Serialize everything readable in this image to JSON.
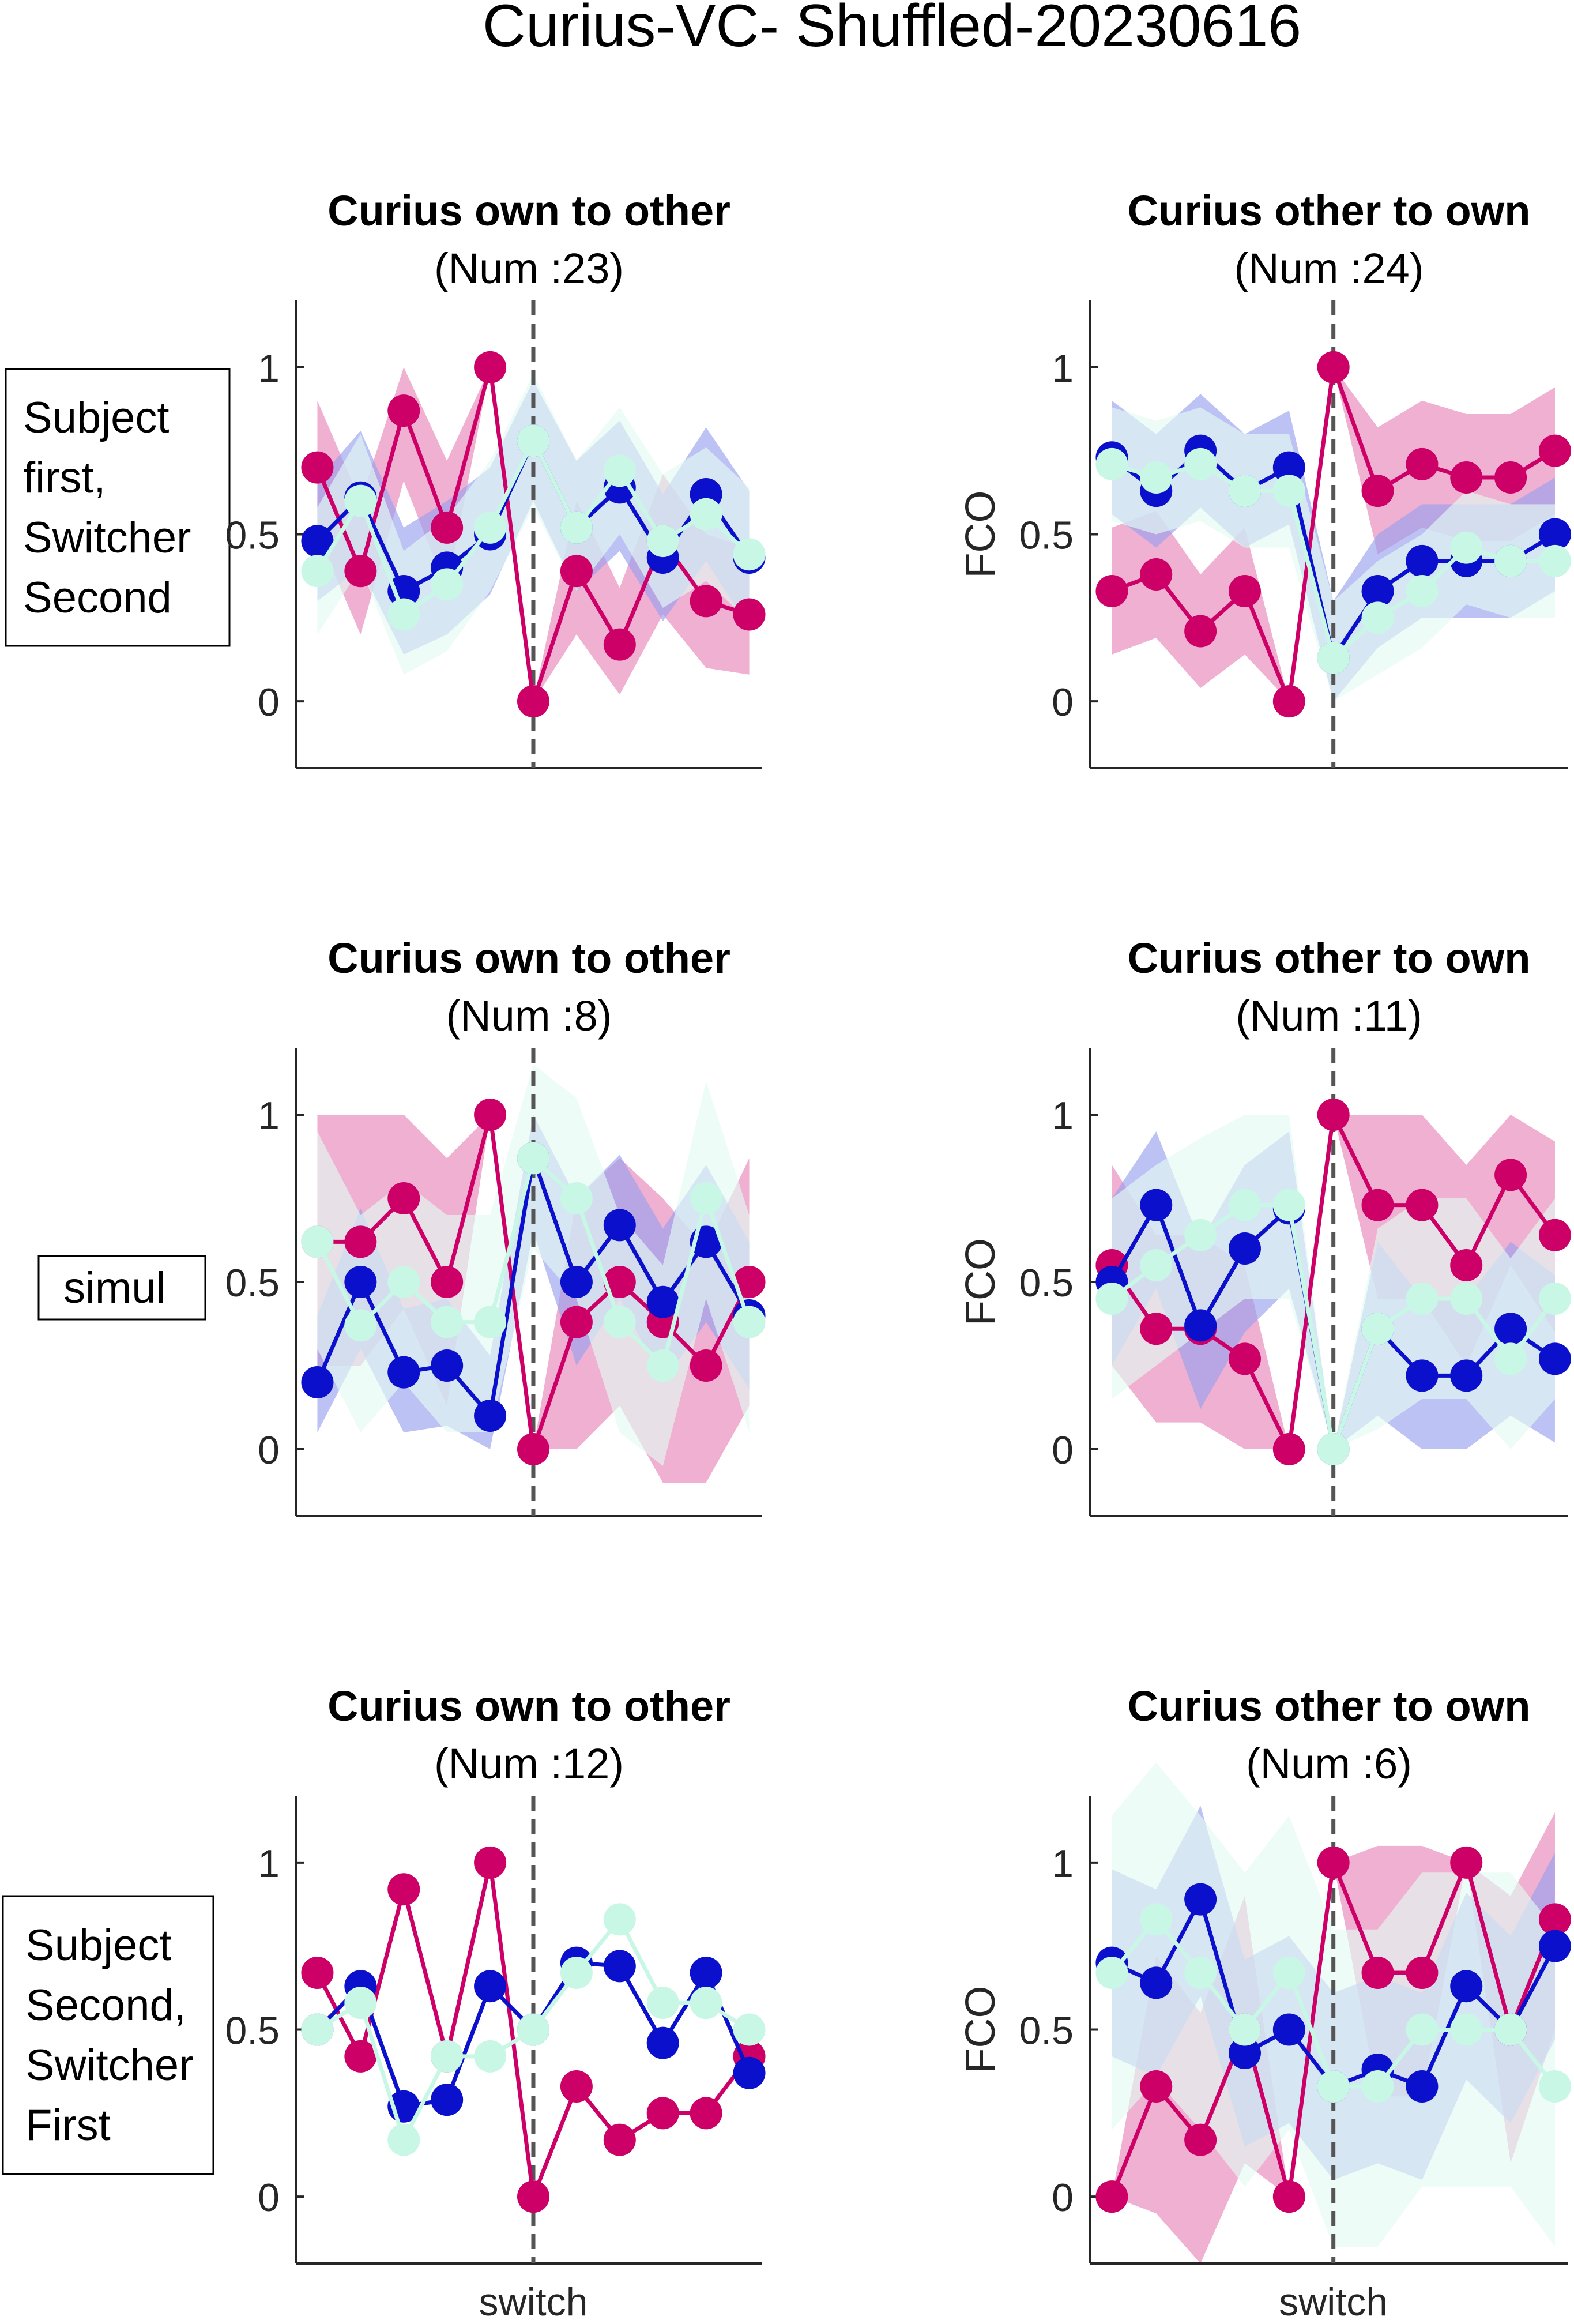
{
  "figure": {
    "title": "Curius-VC- Shuffled-20230616"
  },
  "row_labels": [
    {
      "lines": [
        "Subject",
        "first,",
        "Switcher",
        "Second"
      ]
    },
    {
      "lines": [
        "simul"
      ]
    },
    {
      "lines": [
        "Subject",
        "Second,",
        "Switcher",
        "First"
      ]
    }
  ],
  "colors": {
    "magenta": "#cc0066",
    "blue": "#0a10cc",
    "mint": "#c8f7e6",
    "band_magenta": "#e886b8",
    "band_blue": "#9aa2ee",
    "band_mint": "#e4fbf2",
    "axis": "#262626",
    "switch_line": "#555555"
  },
  "chart_data": [
    {
      "type": "line",
      "title": "Curius own to other",
      "subtitle": "(Num :23)",
      "xlabel": "",
      "ylabel": "",
      "ylim": [
        -0.2,
        1.2
      ],
      "yticks": [
        0,
        0.5,
        1
      ],
      "yticklabels": [
        "0",
        "0.5",
        "1"
      ],
      "x": [
        -5,
        -4,
        -3,
        -2,
        -1,
        0,
        1,
        2,
        3,
        4,
        5
      ],
      "switch_x": 0,
      "series": [
        {
          "color": "magenta",
          "values": [
            0.7,
            0.39,
            0.87,
            0.52,
            1.0,
            0.0,
            0.39,
            0.17,
            0.48,
            0.3,
            0.26
          ],
          "band": {
            "lower": [
              0.5,
              0.2,
              0.66,
              0.33,
              1.0,
              0.0,
              0.2,
              0.02,
              0.26,
              0.1,
              0.08
            ],
            "upper": [
              0.9,
              0.6,
              1.0,
              0.72,
              1.0,
              0.0,
              0.6,
              0.34,
              0.68,
              0.5,
              0.46
            ]
          }
        },
        {
          "color": "blue",
          "values": [
            0.48,
            0.61,
            0.33,
            0.4,
            0.5,
            0.78,
            0.52,
            0.64,
            0.43,
            0.62,
            0.43
          ],
          "band": {
            "lower": [
              0.3,
              0.4,
              0.14,
              0.2,
              0.32,
              0.6,
              0.33,
              0.45,
              0.24,
              0.42,
              0.22
            ],
            "upper": [
              0.66,
              0.81,
              0.52,
              0.6,
              0.7,
              0.96,
              0.72,
              0.84,
              0.62,
              0.82,
              0.63
            ]
          }
        },
        {
          "color": "mint",
          "values": [
            0.39,
            0.6,
            0.26,
            0.35,
            0.52,
            0.78,
            0.52,
            0.69,
            0.48,
            0.56,
            0.44
          ],
          "band": {
            "lower": [
              0.2,
              0.4,
              0.08,
              0.15,
              0.33,
              0.58,
              0.33,
              0.5,
              0.28,
              0.36,
              0.24
            ],
            "upper": [
              0.58,
              0.8,
              0.45,
              0.55,
              0.72,
              0.98,
              0.72,
              0.88,
              0.68,
              0.76,
              0.64
            ]
          }
        }
      ]
    },
    {
      "type": "line",
      "title": "Curius other to own",
      "subtitle": "(Num :24)",
      "xlabel": "",
      "ylabel": "FCO",
      "ylim": [
        -0.2,
        1.2
      ],
      "yticks": [
        0,
        0.5,
        1
      ],
      "yticklabels": [
        "0",
        "0.5",
        "1"
      ],
      "x": [
        -5,
        -4,
        -3,
        -2,
        -1,
        0,
        1,
        2,
        3,
        4,
        5
      ],
      "switch_x": 0,
      "series": [
        {
          "color": "magenta",
          "values": [
            0.33,
            0.38,
            0.21,
            0.33,
            0.0,
            1.0,
            0.63,
            0.71,
            0.67,
            0.67,
            0.75
          ],
          "band": {
            "lower": [
              0.14,
              0.19,
              0.04,
              0.14,
              0.0,
              1.0,
              0.44,
              0.52,
              0.48,
              0.48,
              0.56
            ],
            "upper": [
              0.52,
              0.57,
              0.38,
              0.52,
              0.0,
              1.0,
              0.82,
              0.9,
              0.86,
              0.86,
              0.94
            ]
          }
        },
        {
          "color": "blue",
          "values": [
            0.73,
            0.63,
            0.75,
            0.63,
            0.7,
            0.13,
            0.33,
            0.42,
            0.42,
            0.42,
            0.5
          ],
          "band": {
            "lower": [
              0.56,
              0.46,
              0.58,
              0.46,
              0.53,
              0.0,
              0.16,
              0.25,
              0.25,
              0.25,
              0.33
            ],
            "upper": [
              0.9,
              0.8,
              0.92,
              0.8,
              0.87,
              0.3,
              0.5,
              0.59,
              0.59,
              0.59,
              0.67
            ]
          }
        },
        {
          "color": "mint",
          "values": [
            0.71,
            0.67,
            0.71,
            0.63,
            0.63,
            0.13,
            0.25,
            0.33,
            0.46,
            0.42,
            0.42
          ],
          "band": {
            "lower": [
              0.54,
              0.5,
              0.54,
              0.46,
              0.46,
              0.0,
              0.08,
              0.16,
              0.29,
              0.25,
              0.25
            ],
            "upper": [
              0.88,
              0.84,
              0.88,
              0.8,
              0.8,
              0.3,
              0.42,
              0.5,
              0.63,
              0.59,
              0.59
            ]
          }
        }
      ]
    },
    {
      "type": "line",
      "title": "Curius own to other",
      "subtitle": "(Num :8)",
      "xlabel": "",
      "ylabel": "",
      "ylim": [
        -0.2,
        1.2
      ],
      "yticks": [
        0,
        0.5,
        1
      ],
      "yticklabels": [
        "0",
        "0.5",
        "1"
      ],
      "x": [
        -5,
        -4,
        -3,
        -2,
        -1,
        0,
        1,
        2,
        3,
        4,
        5
      ],
      "switch_x": 0,
      "series": [
        {
          "color": "magenta",
          "values": [
            0.62,
            0.62,
            0.75,
            0.5,
            1.0,
            0.0,
            0.38,
            0.5,
            0.38,
            0.25,
            0.5
          ],
          "band": {
            "lower": [
              0.25,
              0.25,
              0.42,
              0.13,
              1.0,
              0.0,
              0.0,
              0.13,
              -0.1,
              -0.1,
              0.13
            ],
            "upper": [
              1.0,
              1.0,
              1.0,
              0.87,
              1.0,
              0.0,
              0.75,
              0.87,
              0.75,
              0.6,
              0.87
            ]
          }
        },
        {
          "color": "blue",
          "values": [
            0.2,
            0.5,
            0.23,
            0.25,
            0.1,
            0.87,
            0.5,
            0.67,
            0.44,
            0.62,
            0.4
          ],
          "band": {
            "lower": [
              0.05,
              0.3,
              0.05,
              0.07,
              0.0,
              0.65,
              0.25,
              0.45,
              0.2,
              0.38,
              0.18
            ],
            "upper": [
              0.4,
              0.72,
              0.42,
              0.45,
              0.28,
              1.0,
              0.75,
              0.88,
              0.66,
              0.85,
              0.62
            ]
          }
        },
        {
          "color": "mint",
          "values": [
            0.62,
            0.37,
            0.5,
            0.38,
            0.38,
            0.87,
            0.75,
            0.38,
            0.25,
            0.75,
            0.38
          ],
          "band": {
            "lower": [
              0.3,
              0.05,
              0.2,
              0.05,
              0.05,
              0.6,
              0.45,
              0.05,
              -0.05,
              0.45,
              0.05
            ],
            "upper": [
              0.95,
              0.7,
              0.8,
              0.7,
              0.7,
              1.15,
              1.05,
              0.7,
              0.55,
              1.1,
              0.7
            ]
          }
        }
      ]
    },
    {
      "type": "line",
      "title": "Curius other to own",
      "subtitle": "(Num :11)",
      "xlabel": "",
      "ylabel": "FCO",
      "ylim": [
        -0.2,
        1.2
      ],
      "yticks": [
        0,
        0.5,
        1
      ],
      "yticklabels": [
        "0",
        "0.5",
        "1"
      ],
      "x": [
        -5,
        -4,
        -3,
        -2,
        -1,
        0,
        1,
        2,
        3,
        4,
        5
      ],
      "switch_x": 0,
      "series": [
        {
          "color": "magenta",
          "values": [
            0.55,
            0.36,
            0.36,
            0.27,
            0.0,
            1.0,
            0.73,
            0.73,
            0.55,
            0.82,
            0.64
          ],
          "band": {
            "lower": [
              0.25,
              0.08,
              0.08,
              0.0,
              0.0,
              1.0,
              0.45,
              0.45,
              0.25,
              0.55,
              0.35
            ],
            "upper": [
              0.85,
              0.64,
              0.64,
              0.55,
              0.0,
              1.0,
              1.0,
              1.0,
              0.85,
              1.0,
              0.92
            ]
          }
        },
        {
          "color": "blue",
          "values": [
            0.5,
            0.73,
            0.37,
            0.6,
            0.72,
            0.0,
            0.36,
            0.22,
            0.22,
            0.36,
            0.27
          ],
          "band": {
            "lower": [
              0.25,
              0.48,
              0.12,
              0.35,
              0.48,
              0.0,
              0.1,
              0.0,
              0.0,
              0.1,
              0.02
            ],
            "upper": [
              0.75,
              0.95,
              0.62,
              0.85,
              0.95,
              0.0,
              0.62,
              0.45,
              0.45,
              0.62,
              0.52
            ]
          }
        },
        {
          "color": "mint",
          "values": [
            0.45,
            0.55,
            0.64,
            0.73,
            0.73,
            0.0,
            0.36,
            0.45,
            0.45,
            0.27,
            0.45
          ],
          "band": {
            "lower": [
              0.15,
              0.25,
              0.35,
              0.45,
              0.45,
              0.0,
              0.06,
              0.15,
              0.15,
              0.0,
              0.15
            ],
            "upper": [
              0.75,
              0.85,
              0.93,
              1.0,
              1.0,
              0.0,
              0.66,
              0.75,
              0.75,
              0.57,
              0.75
            ]
          }
        }
      ]
    },
    {
      "type": "line",
      "title": "Curius own to other",
      "subtitle": "(Num :12)",
      "xlabel": "switch",
      "ylabel": "",
      "ylim": [
        -0.2,
        1.2
      ],
      "yticks": [
        0,
        0.5,
        1
      ],
      "yticklabels": [
        "0",
        "0.5",
        "1"
      ],
      "x": [
        -5,
        -4,
        -3,
        -2,
        -1,
        0,
        1,
        2,
        3,
        4,
        5
      ],
      "switch_x": 0,
      "series": [
        {
          "color": "magenta",
          "values": [
            0.67,
            0.42,
            0.92,
            0.42,
            1.0,
            0.0,
            0.33,
            0.17,
            0.25,
            0.25,
            0.42
          ]
        },
        {
          "color": "blue",
          "values": [
            0.5,
            0.63,
            0.27,
            0.29,
            0.63,
            0.5,
            0.7,
            0.69,
            0.46,
            0.67,
            0.37
          ]
        },
        {
          "color": "mint",
          "values": [
            0.5,
            0.58,
            0.17,
            0.42,
            0.42,
            0.5,
            0.67,
            0.83,
            0.58,
            0.58,
            0.5
          ]
        }
      ]
    },
    {
      "type": "line",
      "title": "Curius other to own",
      "subtitle": "(Num :6)",
      "xlabel": "switch",
      "ylabel": "FCO",
      "ylim": [
        -0.2,
        1.2
      ],
      "yticks": [
        0,
        0.5,
        1
      ],
      "yticklabels": [
        "0",
        "0.5",
        "1"
      ],
      "x": [
        -5,
        -4,
        -3,
        -2,
        -1,
        0,
        1,
        2,
        3,
        4,
        5
      ],
      "switch_x": 0,
      "series": [
        {
          "color": "magenta",
          "values": [
            0.0,
            0.33,
            0.17,
            0.5,
            0.0,
            1.0,
            0.67,
            0.67,
            1.0,
            0.5,
            0.83
          ],
          "band": {
            "lower": [
              0.0,
              -0.05,
              -0.2,
              0.1,
              0.0,
              1.0,
              0.3,
              0.3,
              1.0,
              0.1,
              0.5
            ],
            "upper": [
              0.0,
              0.72,
              0.55,
              0.9,
              0.0,
              1.0,
              1.05,
              1.05,
              1.0,
              0.9,
              1.15
            ]
          }
        },
        {
          "color": "blue",
          "values": [
            0.7,
            0.64,
            0.89,
            0.43,
            0.5,
            0.33,
            0.38,
            0.33,
            0.63,
            0.5,
            0.75
          ],
          "band": {
            "lower": [
              0.42,
              0.36,
              0.6,
              0.15,
              0.22,
              0.05,
              0.1,
              0.05,
              0.35,
              0.22,
              0.47
            ],
            "upper": [
              0.98,
              0.92,
              1.17,
              0.71,
              0.78,
              0.61,
              0.66,
              0.61,
              0.91,
              0.78,
              1.03
            ]
          }
        },
        {
          "color": "mint",
          "values": [
            0.67,
            0.83,
            0.67,
            0.5,
            0.67,
            0.33,
            0.33,
            0.5,
            0.5,
            0.5,
            0.33
          ],
          "band": {
            "lower": [
              0.2,
              0.35,
              0.2,
              0.03,
              0.2,
              -0.15,
              -0.15,
              0.03,
              0.03,
              0.03,
              -0.15
            ],
            "upper": [
              1.14,
              1.3,
              1.14,
              0.97,
              1.14,
              0.8,
              0.8,
              0.97,
              0.97,
              0.97,
              0.8
            ]
          }
        }
      ]
    }
  ]
}
